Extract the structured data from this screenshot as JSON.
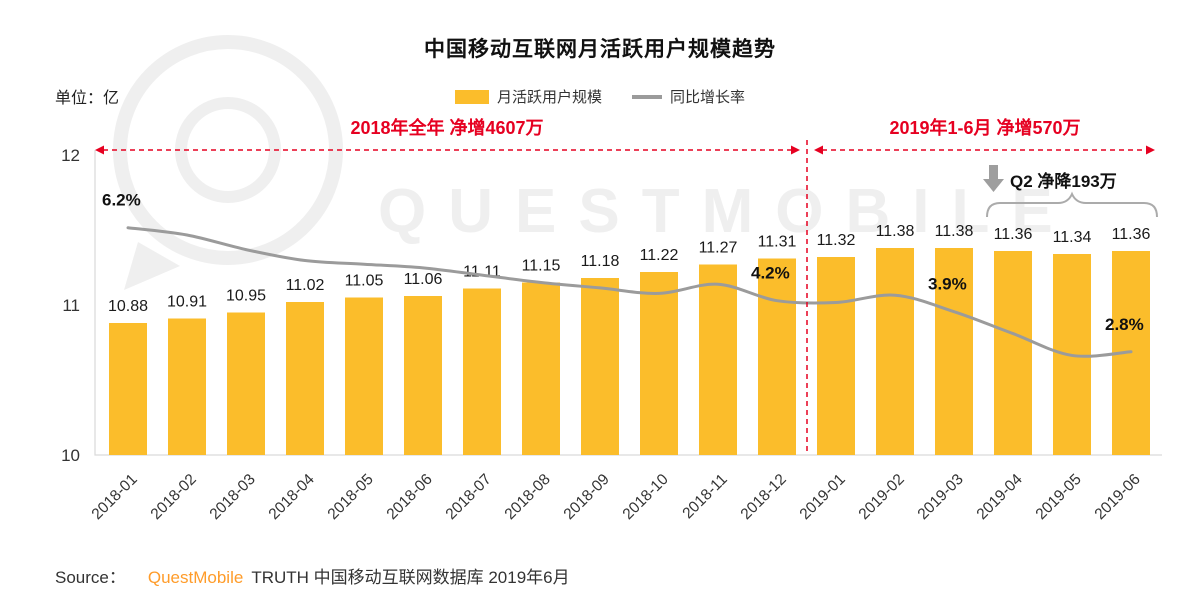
{
  "title": "中国移动互联网月活跃用户规模趋势",
  "unit_label": "单位：亿",
  "legend": {
    "bar_label": "月活跃用户规模",
    "line_label": "同比增长率"
  },
  "annotations": {
    "period_2018_label": "2018年全年 净增4607万",
    "period_2019_label": "2019年1-6月 净增570万",
    "q2_label": "Q2 净降193万"
  },
  "watermark_text": "QUESTMOBILE",
  "source": {
    "prefix": "Source：",
    "brand": "QuestMobile",
    "suffix": "TRUTH 中国移动互联网数据库 2019年6月"
  },
  "colors": {
    "bar": "#FBBD2B",
    "line": "#9B9B9B",
    "annotation_red": "#E60021",
    "brand_orange": "#FF9C2A",
    "axis": "#D9D9D9",
    "text_dark": "#1A1A1A",
    "watermark": "#EFEFEF",
    "gray_arrow": "#9E9E9E"
  },
  "chart_data": {
    "type": "bar",
    "title": "中国移动互联网月活跃用户规模趋势",
    "categories": [
      "2018-01",
      "2018-02",
      "2018-03",
      "2018-04",
      "2018-05",
      "2018-06",
      "2018-07",
      "2018-08",
      "2018-09",
      "2018-10",
      "2018-11",
      "2018-12",
      "2019-01",
      "2019-02",
      "2019-03",
      "2019-04",
      "2019-05",
      "2019-06"
    ],
    "series": [
      {
        "name": "月活跃用户规模",
        "type": "bar",
        "unit": "亿",
        "values": [
          10.88,
          10.91,
          10.95,
          11.02,
          11.05,
          11.06,
          11.11,
          11.15,
          11.18,
          11.22,
          11.27,
          11.31,
          11.32,
          11.38,
          11.38,
          11.36,
          11.34,
          11.36
        ]
      },
      {
        "name": "同比增长率",
        "type": "line",
        "unit": "%",
        "values": [
          6.2,
          6.0,
          5.6,
          5.3,
          5.2,
          5.1,
          4.9,
          4.7,
          4.55,
          4.4,
          4.65,
          4.2,
          4.15,
          4.35,
          3.9,
          3.3,
          2.7,
          2.8
        ],
        "labeled_points": [
          {
            "index": 0,
            "label": "6.2%"
          },
          {
            "index": 11,
            "label": "4.2%"
          },
          {
            "index": 14,
            "label": "3.9%"
          },
          {
            "index": 17,
            "label": "2.8%"
          }
        ]
      }
    ],
    "y_axis": {
      "ticks": [
        10,
        11,
        12
      ],
      "min": 10,
      "max": 12,
      "label": "单位：亿"
    },
    "legend_position": "top",
    "bar_value_labels": true,
    "grid": false
  }
}
